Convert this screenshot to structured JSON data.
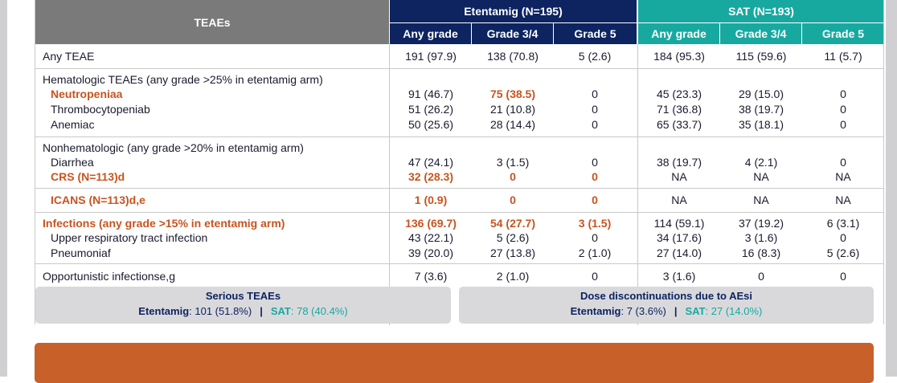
{
  "header": {
    "teaes": "TEAEs",
    "etentamig": "Etentamig (N=195)",
    "sat": "SAT (N=193)",
    "subheaders": [
      "Any grade",
      "Grade 3/4",
      "Grade 5",
      "Any grade",
      "Grade 3/4",
      "Grade 5"
    ]
  },
  "rows": {
    "any_teae": {
      "label": "Any TEAE",
      "vals": [
        "191 (97.9)",
        "138 (70.8)",
        "5 (2.6)",
        "184 (95.3)",
        "115 (59.6)",
        "11 (5.7)"
      ]
    },
    "heme": {
      "title": "Hematologic TEAEs (any grade >25% in etentamig arm)",
      "items": [
        {
          "label": "Neutropeniaa",
          "vals": [
            "91 (46.7)",
            "75 (38.5)",
            "0",
            "45 (23.3)",
            "29 (15.0)",
            "0"
          ]
        },
        {
          "label": "Thrombocytopeniab",
          "vals": [
            "51 (26.2)",
            "21 (10.8)",
            "0",
            "71 (36.8)",
            "38 (19.7)",
            "0"
          ]
        },
        {
          "label": "Anemiac",
          "vals": [
            "50 (25.6)",
            "28 (14.4)",
            "0",
            "65 (33.7)",
            "35 (18.1)",
            "0"
          ]
        }
      ]
    },
    "nonheme": {
      "title": "Nonhematologic (any grade >20% in etentamig arm)",
      "items": [
        {
          "label": "Diarrhea",
          "vals": [
            "47 (24.1)",
            "3 (1.5)",
            "0",
            "38 (19.7)",
            "4 (2.1)",
            "0"
          ]
        },
        {
          "label": "CRS (N=113)d",
          "vals": [
            "32 (28.3)",
            "0",
            "0",
            "NA",
            "NA",
            "NA"
          ]
        }
      ]
    },
    "icans": {
      "label": "ICANS (N=113)d,e",
      "vals": [
        "1 (0.9)",
        "0",
        "0",
        "NA",
        "NA",
        "NA"
      ]
    },
    "infections": {
      "title": "Infections (any grade >15% in etentamig arm)",
      "title_vals": [
        "136 (69.7)",
        "54 (27.7)",
        "3 (1.5)",
        "114 (59.1)",
        "37 (19.2)",
        "6 (3.1)"
      ],
      "items": [
        {
          "label": "Upper respiratory tract infection",
          "vals": [
            "43 (22.1)",
            "5 (2.6)",
            "0",
            "34 (17.6)",
            "3 (1.6)",
            "0"
          ]
        },
        {
          "label": "Pneumoniaf",
          "vals": [
            "39 (20.0)",
            "27 (13.8)",
            "2 (1.0)",
            "27 (14.0)",
            "16 (8.3)",
            "5 (2.6)"
          ]
        }
      ]
    },
    "opportunistic": {
      "label": "Opportunistic infectionse,g",
      "vals": [
        "7 (3.6)",
        "2 (1.0)",
        "0",
        "3 (1.6)",
        "0",
        "0"
      ]
    }
  },
  "boxes": {
    "serious": {
      "title": "Serious TEAEs",
      "k1": "Etentamig",
      "v1": ": 101 (51.8%)",
      "sep": "|",
      "k2": "SAT",
      "v2": ": 78 (40.4%)"
    },
    "discont": {
      "title": "Dose discontinuations due to AEsi",
      "k1": "Etentamig",
      "v1": ": 7 (3.6%)",
      "sep": "|",
      "k2": "SAT",
      "v2": ": 27 (14.0%)"
    }
  },
  "colors": {
    "navy": "#0d2461",
    "teal": "#17a9a0",
    "orange": "#c8541f",
    "gray_header": "#7a7a7a"
  }
}
